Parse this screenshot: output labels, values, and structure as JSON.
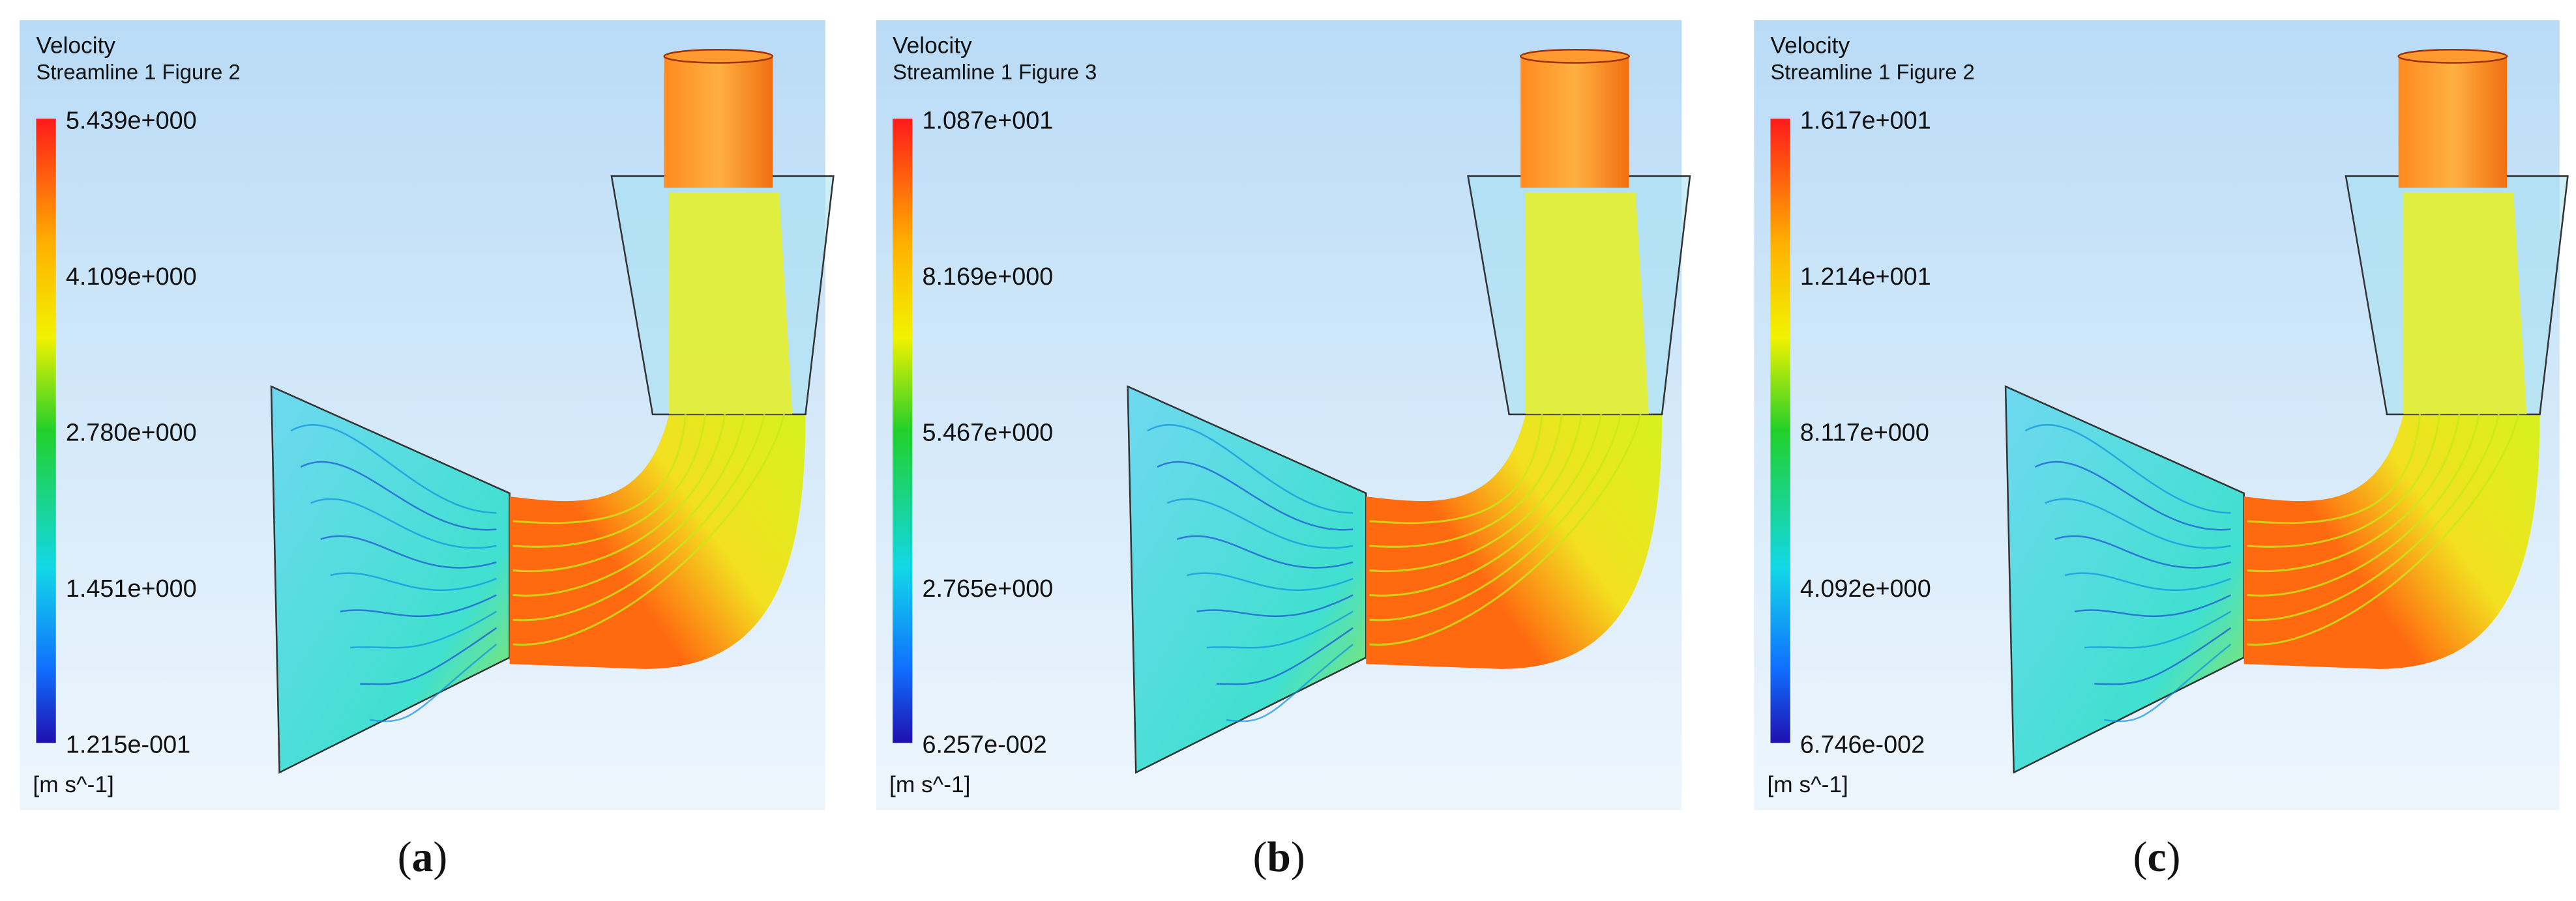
{
  "panels": [
    {
      "title": "Velocity",
      "subtitle": "Streamline 1 Figure 2",
      "legend": [
        "5.439e+000",
        "4.109e+000",
        "2.780e+000",
        "1.451e+000",
        "1.215e-001"
      ],
      "unit": "[m s^-1]",
      "caption": {
        "open": "(",
        "label": "a",
        "close": ")"
      }
    },
    {
      "title": "Velocity",
      "subtitle": "Streamline 1 Figure 3",
      "legend": [
        "1.087e+001",
        "8.169e+000",
        "5.467e+000",
        "2.765e+000",
        "6.257e-002"
      ],
      "unit": "[m s^-1]",
      "caption": {
        "open": "(",
        "label": "b",
        "close": ")"
      }
    },
    {
      "title": "Velocity",
      "subtitle": "Streamline 1 Figure 2",
      "legend": [
        "1.617e+001",
        "1.214e+001",
        "8.117e+000",
        "4.092e+000",
        "6.746e-002"
      ],
      "unit": "[m s^-1]",
      "caption": {
        "open": "(",
        "label": "c",
        "close": ")"
      }
    }
  ]
}
